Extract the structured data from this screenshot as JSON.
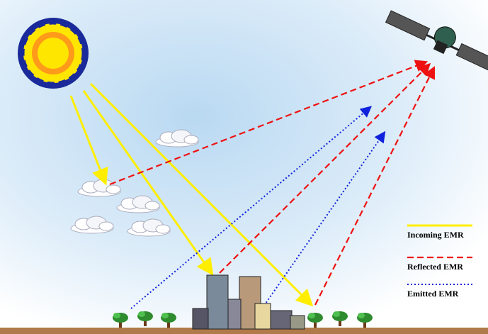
{
  "legend": {
    "items": [
      {
        "label": "Incoming EMR"
      },
      {
        "label": "Reflected EMR"
      },
      {
        "label": "Emitted EMR"
      }
    ]
  }
}
